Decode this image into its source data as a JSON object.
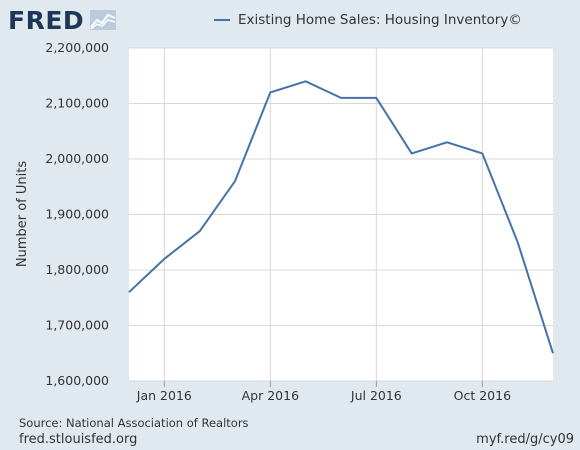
{
  "header": {
    "logo_text": "FRED"
  },
  "chart_data": {
    "type": "line",
    "title": "",
    "ylabel": "Number of Units",
    "xlabel": "",
    "x_ticks": [
      "Jan 2016",
      "Apr 2016",
      "Jul 2016",
      "Oct 2016"
    ],
    "y_ticks": [
      "1,600,000",
      "1,700,000",
      "1,800,000",
      "1,900,000",
      "2,000,000",
      "2,100,000",
      "2,200,000"
    ],
    "ylim": [
      1600000,
      2200000
    ],
    "x": [
      "2015-12",
      "2016-01",
      "2016-02",
      "2016-03",
      "2016-04",
      "2016-05",
      "2016-06",
      "2016-07",
      "2016-08",
      "2016-09",
      "2016-10",
      "2016-11",
      "2016-12"
    ],
    "series": [
      {
        "name": "Existing Home Sales: Housing Inventory©",
        "color": "#4572a7",
        "values": [
          1760000,
          1820000,
          1870000,
          1960000,
          2120000,
          2140000,
          2110000,
          2110000,
          2010000,
          2030000,
          2010000,
          1850000,
          1650000
        ]
      }
    ],
    "grid": true,
    "legend_position": "top"
  },
  "footer": {
    "source": "Source: National Association of Realtors",
    "site": "fred.stlouisfed.org",
    "short_url": "myf.red/g/cy09"
  }
}
